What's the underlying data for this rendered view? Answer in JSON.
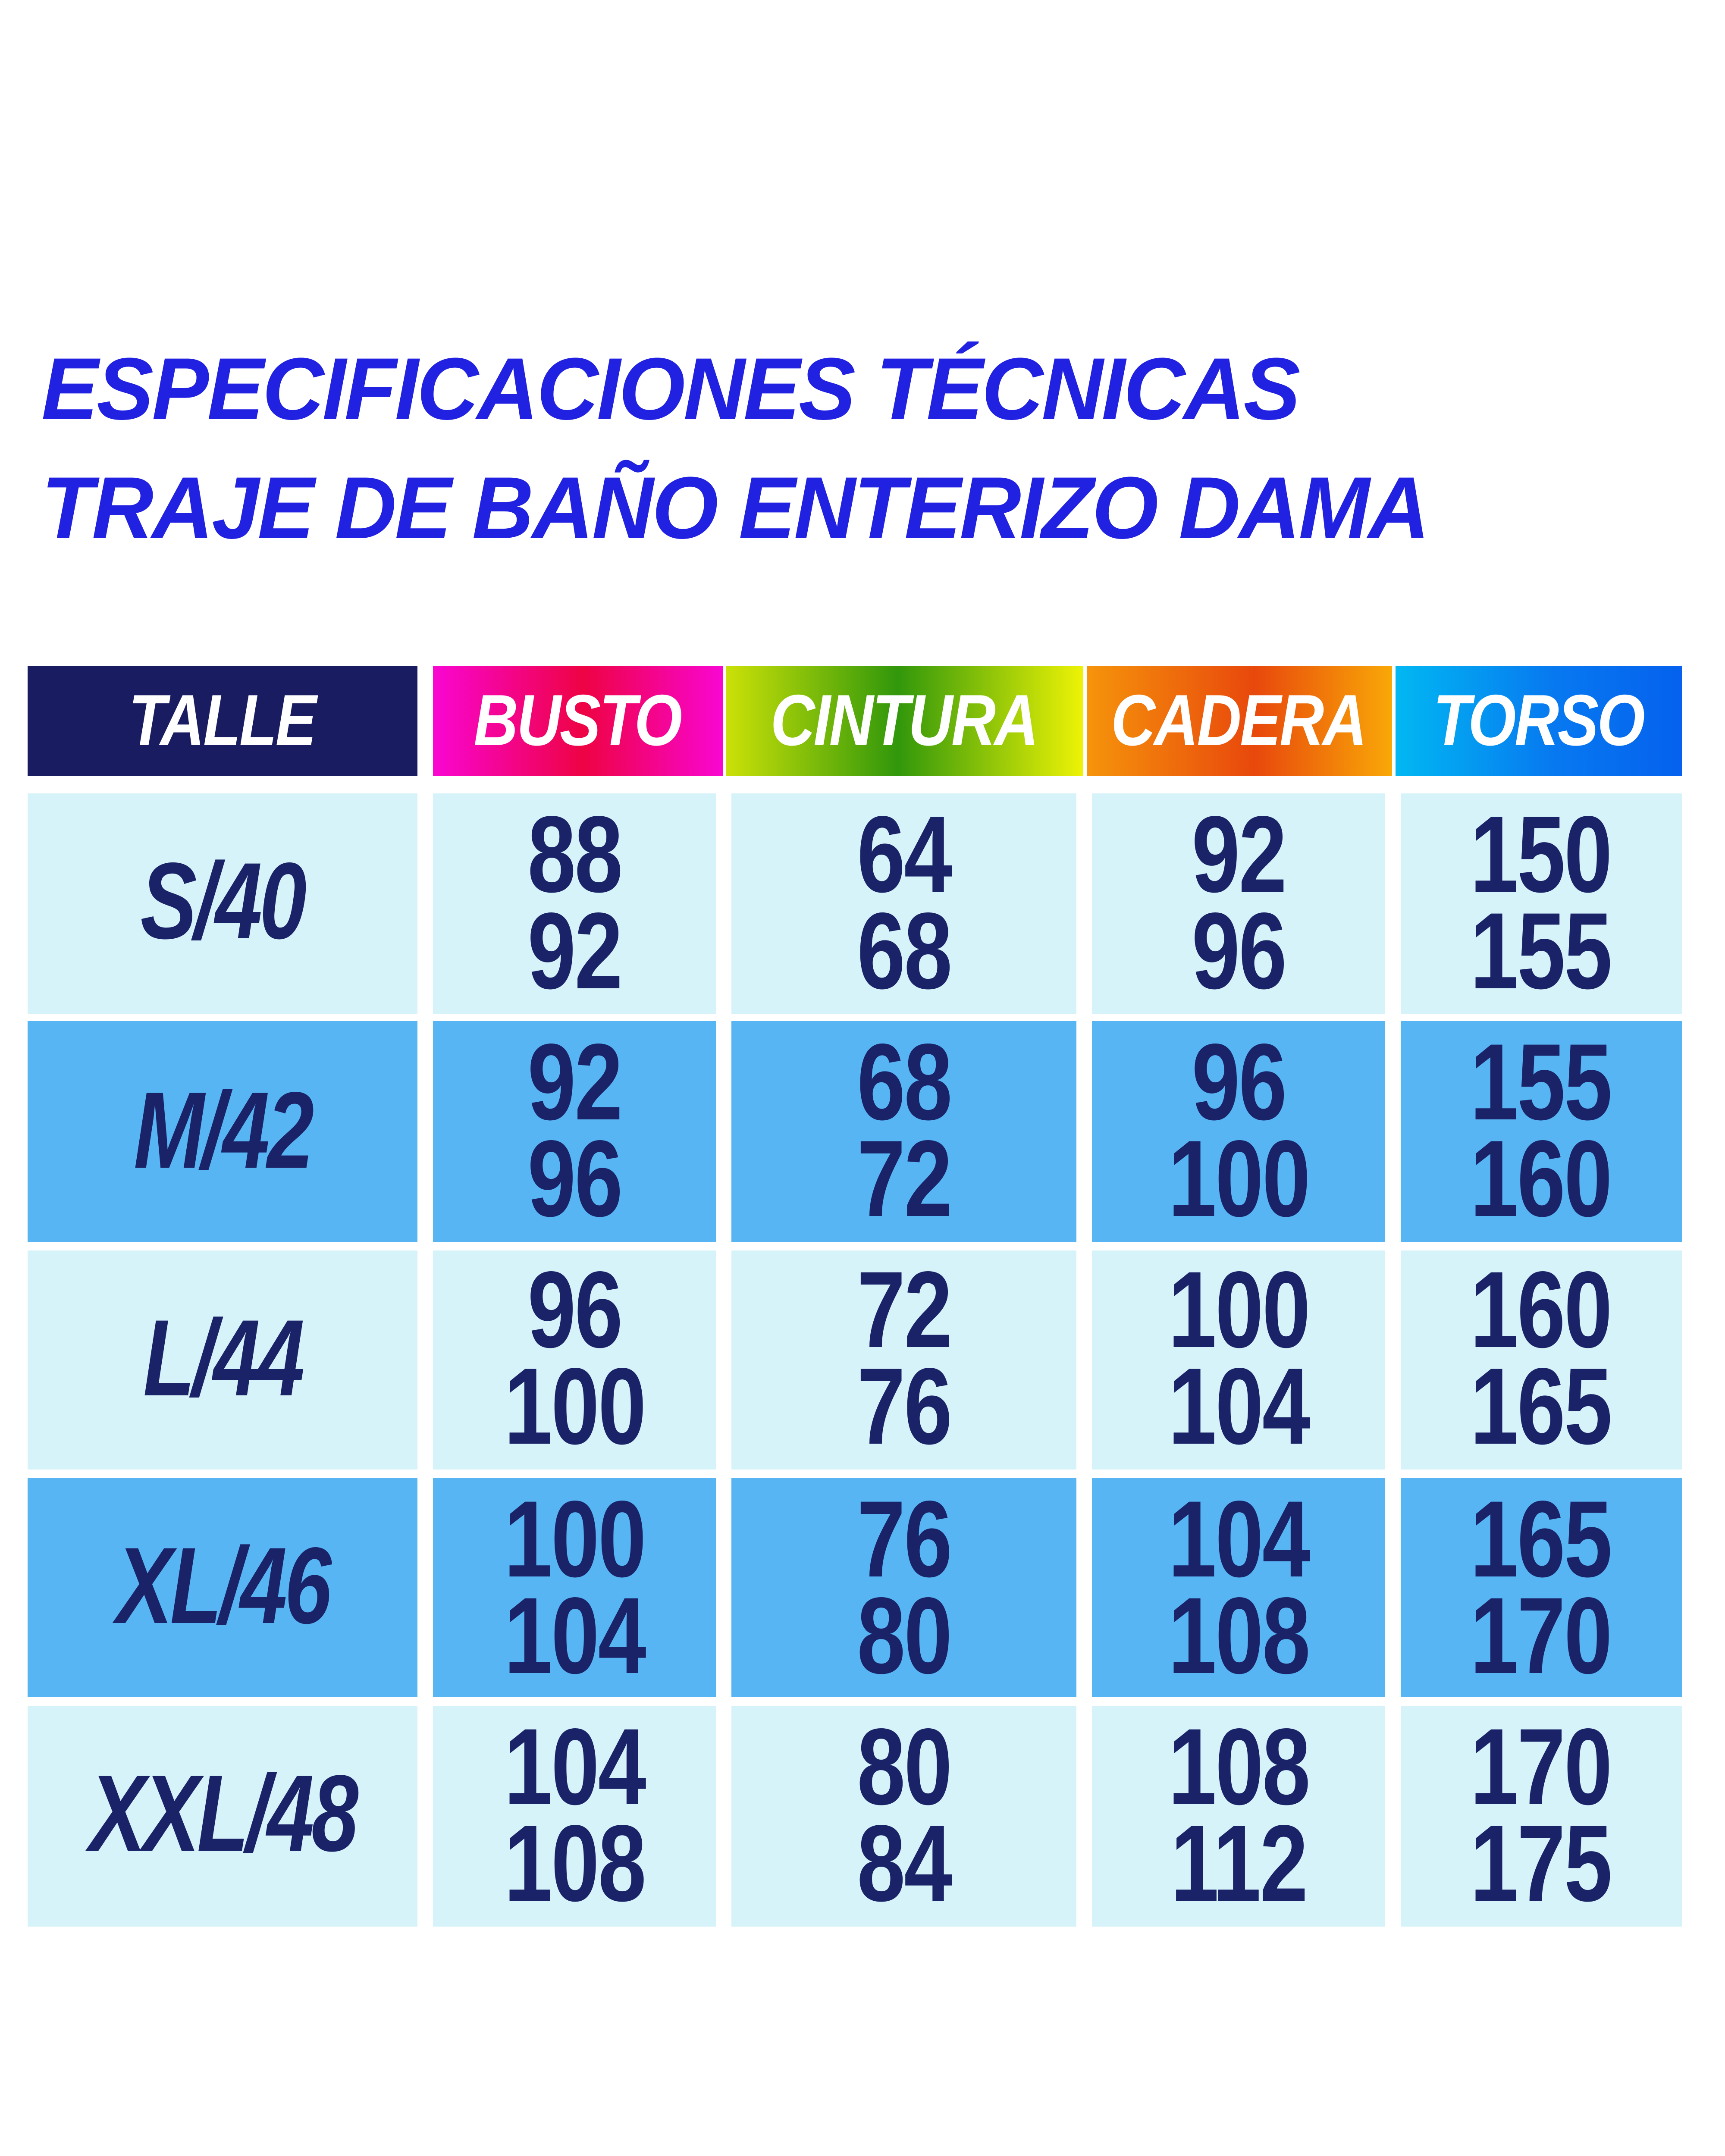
{
  "page": {
    "background": "#ffffff"
  },
  "title": {
    "line1": "ESPECIFICACIONES TÉCNICAS",
    "line2": "TRAJE DE BAÑO ENTERIZO DAMA",
    "color": "#2121e2"
  },
  "table": {
    "header": {
      "talle": {
        "label": "TALLE",
        "bg": "#191c60",
        "text_color": "#ffffff"
      },
      "busto": {
        "label": "BUSTO",
        "gradient": [
          "#f906d2",
          "#ee0344",
          "#f906d2"
        ],
        "text_color": "#ffffff"
      },
      "cintura": {
        "label": "CINTURA",
        "gradient": [
          "#cbe108",
          "#31970b",
          "#eef306"
        ],
        "text_color": "#ffffff"
      },
      "cadera": {
        "label": "CADERA",
        "gradient": [
          "#f6940b",
          "#e8480c",
          "#f9a807"
        ],
        "text_color": "#ffffff"
      },
      "torso": {
        "label": "TORSO",
        "gradient": [
          "#01b8f2",
          "#0779f0",
          "#0561ee"
        ],
        "text_color": "#ffffff"
      }
    },
    "rows": [
      {
        "talle": "S/40",
        "busto": [
          "88",
          "92"
        ],
        "cintura": [
          "64",
          "68"
        ],
        "cadera": [
          "92",
          "96"
        ],
        "torso": [
          "150",
          "155"
        ],
        "band": "light"
      },
      {
        "talle": "M/42",
        "busto": [
          "92",
          "96"
        ],
        "cintura": [
          "68",
          "72"
        ],
        "cadera": [
          "96",
          "100"
        ],
        "torso": [
          "155",
          "160"
        ],
        "band": "dark"
      },
      {
        "talle": "L/44",
        "busto": [
          "96",
          "100"
        ],
        "cintura": [
          "72",
          "76"
        ],
        "cadera": [
          "100",
          "104"
        ],
        "torso": [
          "160",
          "165"
        ],
        "band": "light"
      },
      {
        "talle": "XL/46",
        "busto": [
          "100",
          "104"
        ],
        "cintura": [
          "76",
          "80"
        ],
        "cadera": [
          "104",
          "108"
        ],
        "torso": [
          "165",
          "170"
        ],
        "band": "dark"
      },
      {
        "talle": "XXL/48",
        "busto": [
          "104",
          "108"
        ],
        "cintura": [
          "80",
          "84"
        ],
        "cadera": [
          "108",
          "112"
        ],
        "torso": [
          "170",
          "175"
        ],
        "band": "light"
      }
    ],
    "row_colors": {
      "light": "#d7f3fa",
      "dark": "#57b5f4"
    },
    "value_color": "#1b2368"
  }
}
